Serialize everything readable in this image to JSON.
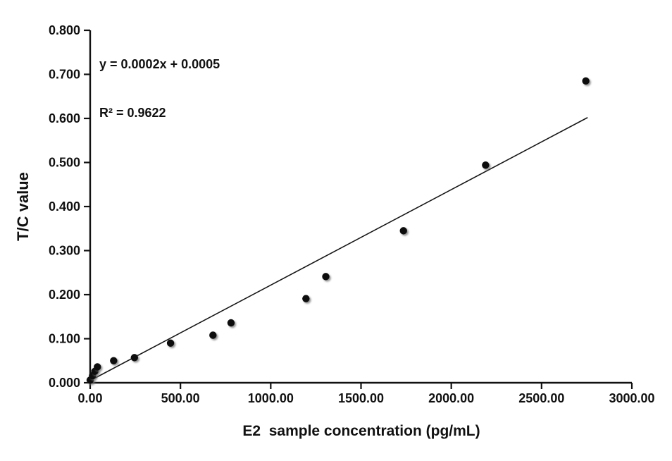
{
  "chart_data": {
    "type": "scatter",
    "title": "",
    "xlabel": "E2  sample concentration (pg/mL)",
    "ylabel": "T/C value",
    "xlim": [
      0,
      3000
    ],
    "ylim": [
      0,
      0.8
    ],
    "grid": false,
    "legend": false,
    "annotation_line1": "y = 0.0002x + 0.0005",
    "annotation_line2": "R² = 0.9622",
    "marker_color": "#0d0d0d",
    "axis_color": "#111111",
    "x_ticks": [
      {
        "v": 0,
        "label": "0.00"
      },
      {
        "v": 500,
        "label": "500.00"
      },
      {
        "v": 1000,
        "label": "1000.00"
      },
      {
        "v": 1500,
        "label": "1500.00"
      },
      {
        "v": 2000,
        "label": "2000.00"
      },
      {
        "v": 2500,
        "label": "2500.00"
      },
      {
        "v": 3000,
        "label": "3000.00"
      }
    ],
    "y_ticks": [
      {
        "v": 0.0,
        "label": "0.000"
      },
      {
        "v": 0.1,
        "label": "0.100"
      },
      {
        "v": 0.2,
        "label": "0.200"
      },
      {
        "v": 0.3,
        "label": "0.300"
      },
      {
        "v": 0.4,
        "label": "0.400"
      },
      {
        "v": 0.5,
        "label": "0.500"
      },
      {
        "v": 0.6,
        "label": "0.600"
      },
      {
        "v": 0.7,
        "label": "0.700"
      },
      {
        "v": 0.8,
        "label": "0.800"
      }
    ],
    "points": [
      [
        0,
        0.006
      ],
      [
        13,
        0.016
      ],
      [
        26,
        0.026
      ],
      [
        40,
        0.036
      ],
      [
        130,
        0.05
      ],
      [
        245,
        0.057
      ],
      [
        445,
        0.09
      ],
      [
        680,
        0.108
      ],
      [
        780,
        0.136
      ],
      [
        1195,
        0.191
      ],
      [
        1305,
        0.241
      ],
      [
        1735,
        0.345
      ],
      [
        2190,
        0.494
      ],
      [
        2745,
        0.685
      ]
    ],
    "trendline": {
      "x_start": 10,
      "y_start": 0.007,
      "x_end": 2755,
      "y_end": 0.602
    }
  }
}
